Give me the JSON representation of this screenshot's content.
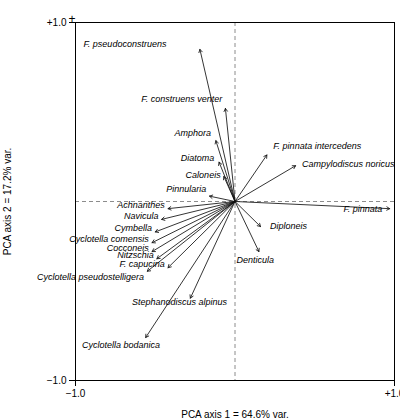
{
  "chart_data": {
    "type": "biplot",
    "xlabel": "PCA axis 1 = 64.6% var.",
    "ylabel": "PCA axis 2 = 17.2% var.",
    "xlim": [
      -1.0,
      1.0
    ],
    "ylim": [
      -1.0,
      1.0
    ],
    "xticks": [
      {
        "value": -1.0,
        "label": "−1.0"
      },
      {
        "value": 1.0,
        "label": "+1.0"
      }
    ],
    "yticks": [
      {
        "value": -1.0,
        "label": "−1.0"
      },
      {
        "value": 1.0,
        "label": "+1.0"
      }
    ],
    "grid": false,
    "color": "#111111",
    "arrow_origin": {
      "x": 0,
      "y": 0
    },
    "reference_lines": {
      "x": [
        0
      ],
      "y": [
        0
      ],
      "color": "#666666",
      "line_style": "dashed"
    },
    "annotations": [
      {
        "text": "+",
        "x": -1.0,
        "y": 1.0
      }
    ],
    "arrows": [
      {
        "name": "F. pseudoconstruens",
        "x": -0.22,
        "y": 0.85,
        "label_x": -0.43,
        "label_y": 0.88,
        "label_anchor": "right"
      },
      {
        "name": "F. construens venter",
        "x": -0.06,
        "y": 0.52,
        "label_x": -0.08,
        "label_y": 0.57,
        "label_anchor": "right"
      },
      {
        "name": "Amphora",
        "x": -0.12,
        "y": 0.34,
        "label_x": -0.15,
        "label_y": 0.38,
        "label_anchor": "right"
      },
      {
        "name": "Diatoma",
        "x": -0.1,
        "y": 0.22,
        "label_x": -0.13,
        "label_y": 0.24,
        "label_anchor": "right"
      },
      {
        "name": "Caloneis",
        "x": -0.07,
        "y": 0.14,
        "label_x": -0.09,
        "label_y": 0.15,
        "label_anchor": "right"
      },
      {
        "name": "Pinnularia",
        "x": -0.16,
        "y": 0.03,
        "label_x": -0.18,
        "label_y": 0.07,
        "label_anchor": "right"
      },
      {
        "name": "Achnanthes",
        "x": -0.42,
        "y": -0.04,
        "label_x": -0.44,
        "label_y": -0.02,
        "label_anchor": "right"
      },
      {
        "name": "Navicula",
        "x": -0.46,
        "y": -0.1,
        "label_x": -0.48,
        "label_y": -0.08,
        "label_anchor": "right"
      },
      {
        "name": "Cymbella",
        "x": -0.5,
        "y": -0.17,
        "label_x": -0.52,
        "label_y": -0.15,
        "label_anchor": "right"
      },
      {
        "name": "Cyclotella comensis",
        "x": -0.52,
        "y": -0.23,
        "label_x": -0.54,
        "label_y": -0.21,
        "label_anchor": "right"
      },
      {
        "name": "Cocconeis",
        "x": -0.52,
        "y": -0.28,
        "label_x": -0.54,
        "label_y": -0.26,
        "label_anchor": "right"
      },
      {
        "name": "Nitzschia",
        "x": -0.49,
        "y": -0.32,
        "label_x": -0.51,
        "label_y": -0.3,
        "label_anchor": "right"
      },
      {
        "name": "F. capucina",
        "x": -0.42,
        "y": -0.37,
        "label_x": -0.44,
        "label_y": -0.35,
        "label_anchor": "right"
      },
      {
        "name": "Cyclotella pseudostelligera",
        "x": -0.55,
        "y": -0.39,
        "label_x": -0.57,
        "label_y": -0.42,
        "label_anchor": "right"
      },
      {
        "name": "Stephanodiscus alpinus",
        "x": -0.28,
        "y": -0.54,
        "label_x": -0.05,
        "label_y": -0.56,
        "label_anchor": "right"
      },
      {
        "name": "Cyclotella bodanica",
        "x": -0.56,
        "y": -0.76,
        "label_x": -0.47,
        "label_y": -0.8,
        "label_anchor": "right"
      },
      {
        "name": "F. pinnata intercedens",
        "x": 0.2,
        "y": 0.26,
        "label_x": 0.24,
        "label_y": 0.31,
        "label_anchor": "left"
      },
      {
        "name": "Campylodiscus noricus",
        "x": 0.38,
        "y": 0.2,
        "label_x": 0.42,
        "label_y": 0.21,
        "label_anchor": "left"
      },
      {
        "name": "Diploneis",
        "x": 0.16,
        "y": -0.14,
        "label_x": 0.22,
        "label_y": -0.14,
        "label_anchor": "left"
      },
      {
        "name": "Denticula",
        "x": 0.15,
        "y": -0.28,
        "label_x": 0.01,
        "label_y": -0.33,
        "label_anchor": "left"
      },
      {
        "name": "F. pinnata",
        "x": 0.97,
        "y": -0.04,
        "label_x": 0.68,
        "label_y": -0.04,
        "label_anchor": "left"
      }
    ]
  }
}
